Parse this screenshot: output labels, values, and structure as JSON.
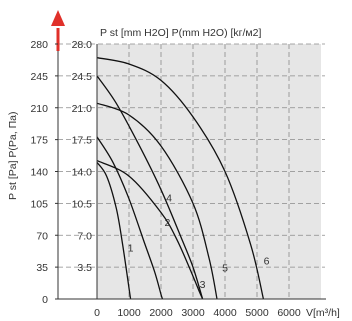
{
  "colors": {
    "plot_background": "#e6e6e6",
    "grid": "#8a8a8a",
    "fan_curve": "#111111",
    "system_curve": "#d9302a",
    "arrow": "#e0302a"
  },
  "chart_data": {
    "type": "line",
    "title": "",
    "axis_left_title": "P st [Pa] P(Pa, Па)",
    "axis_left_sub": "st",
    "axis_top_title": "P st [mm H2O] P(mm H2O) [kг/м2]",
    "xlabel": "V[m³/h]",
    "xlim": [
      0,
      7000
    ],
    "ylim": [
      0,
      280
    ],
    "grid": true,
    "x_ticks": [
      "0",
      "1000",
      "2000",
      "3000",
      "4000",
      "5000",
      "6000"
    ],
    "y_ticks_pa": [
      "0",
      "35",
      "70",
      "105",
      "140",
      "175",
      "210",
      "245",
      "280"
    ],
    "y_ticks_mm": [
      "3.5",
      "7.0",
      "10.5",
      "14.0",
      "17.5",
      "21.0",
      "24.5",
      "28.0"
    ],
    "series": [
      {
        "name": "1",
        "kind": "fan",
        "x": [
          0,
          300,
          600,
          800,
          1000,
          1050
        ],
        "y": [
          150,
          135,
          100,
          60,
          12,
          0
        ]
      },
      {
        "name": "2",
        "kind": "fan",
        "x": [
          0,
          500,
          1000,
          1500,
          1800,
          2000,
          2050
        ],
        "y": [
          178,
          150,
          110,
          60,
          30,
          5,
          0
        ]
      },
      {
        "name": "3",
        "kind": "fan",
        "x": [
          0,
          1000,
          2000,
          2500,
          3000,
          3200,
          3300
        ],
        "y": [
          152,
          135,
          95,
          65,
          25,
          8,
          0
        ]
      },
      {
        "name": "4",
        "kind": "fan",
        "x": [
          0,
          600,
          1300,
          2000,
          2600,
          3000,
          3300
        ],
        "y": [
          245,
          215,
          170,
          120,
          70,
          35,
          0
        ]
      },
      {
        "name": "5",
        "kind": "fan",
        "x": [
          0,
          1000,
          2000,
          3000,
          3500,
          3750
        ],
        "y": [
          215,
          202,
          168,
          105,
          45,
          0
        ]
      },
      {
        "name": "6",
        "kind": "fan",
        "x": [
          0,
          1000,
          2000,
          3000,
          4000,
          4800,
          5200
        ],
        "y": [
          265,
          258,
          240,
          200,
          140,
          60,
          0
        ]
      }
    ],
    "annotations": [
      {
        "text": "1",
        "x": 1050,
        "y": 52
      },
      {
        "text": "2",
        "x": 2200,
        "y": 80
      },
      {
        "text": "3",
        "x": 3300,
        "y": 12
      },
      {
        "text": "4",
        "x": 2250,
        "y": 107
      },
      {
        "text": "5",
        "x": 4000,
        "y": 30
      },
      {
        "text": "6",
        "x": 5300,
        "y": 38
      }
    ]
  }
}
